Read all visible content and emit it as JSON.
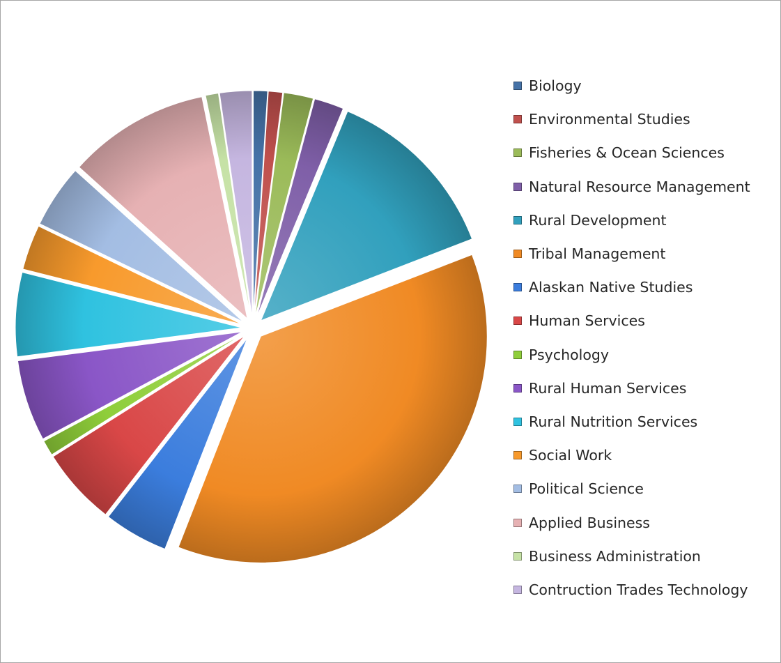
{
  "chart_data": {
    "type": "pie",
    "title": "",
    "legend_position": "right",
    "slices": [
      {
        "label": "Biology",
        "value": 1.1,
        "color": "#4572a7"
      },
      {
        "label": "Environmental Studies",
        "value": 1.1,
        "color": "#c0504d"
      },
      {
        "label": "Fisheries & Ocean Sciences",
        "value": 2.3,
        "color": "#9bbb59"
      },
      {
        "label": "Natural Resource Management",
        "value": 2.3,
        "color": "#7f5fa8"
      },
      {
        "label": "Rural Development",
        "value": 14.0,
        "color": "#31a0bd"
      },
      {
        "label": "Tribal Management",
        "value": 40.0,
        "color": "#f08a24"
      },
      {
        "label": "Alaskan Native Studies",
        "value": 5.0,
        "color": "#3b7ddd"
      },
      {
        "label": "Human Services",
        "value": 6.0,
        "color": "#d94747"
      },
      {
        "label": "Psychology",
        "value": 1.2,
        "color": "#8fce3a"
      },
      {
        "label": "Rural Human Services",
        "value": 6.3,
        "color": "#8a56c7"
      },
      {
        "label": "Rural Nutrition Services",
        "value": 6.5,
        "color": "#2fc2e0"
      },
      {
        "label": "Social Work",
        "value": 3.5,
        "color": "#f89a2c"
      },
      {
        "label": "Political Science",
        "value": 4.9,
        "color": "#a3bde3"
      },
      {
        "label": "Applied Business",
        "value": 11.0,
        "color": "#e6b1b3"
      },
      {
        "label": "Business Administration",
        "value": 1.0,
        "color": "#c6e2a6"
      },
      {
        "label": "Contruction Trades Technology",
        "value": 2.5,
        "color": "#c5b6e0"
      }
    ]
  }
}
